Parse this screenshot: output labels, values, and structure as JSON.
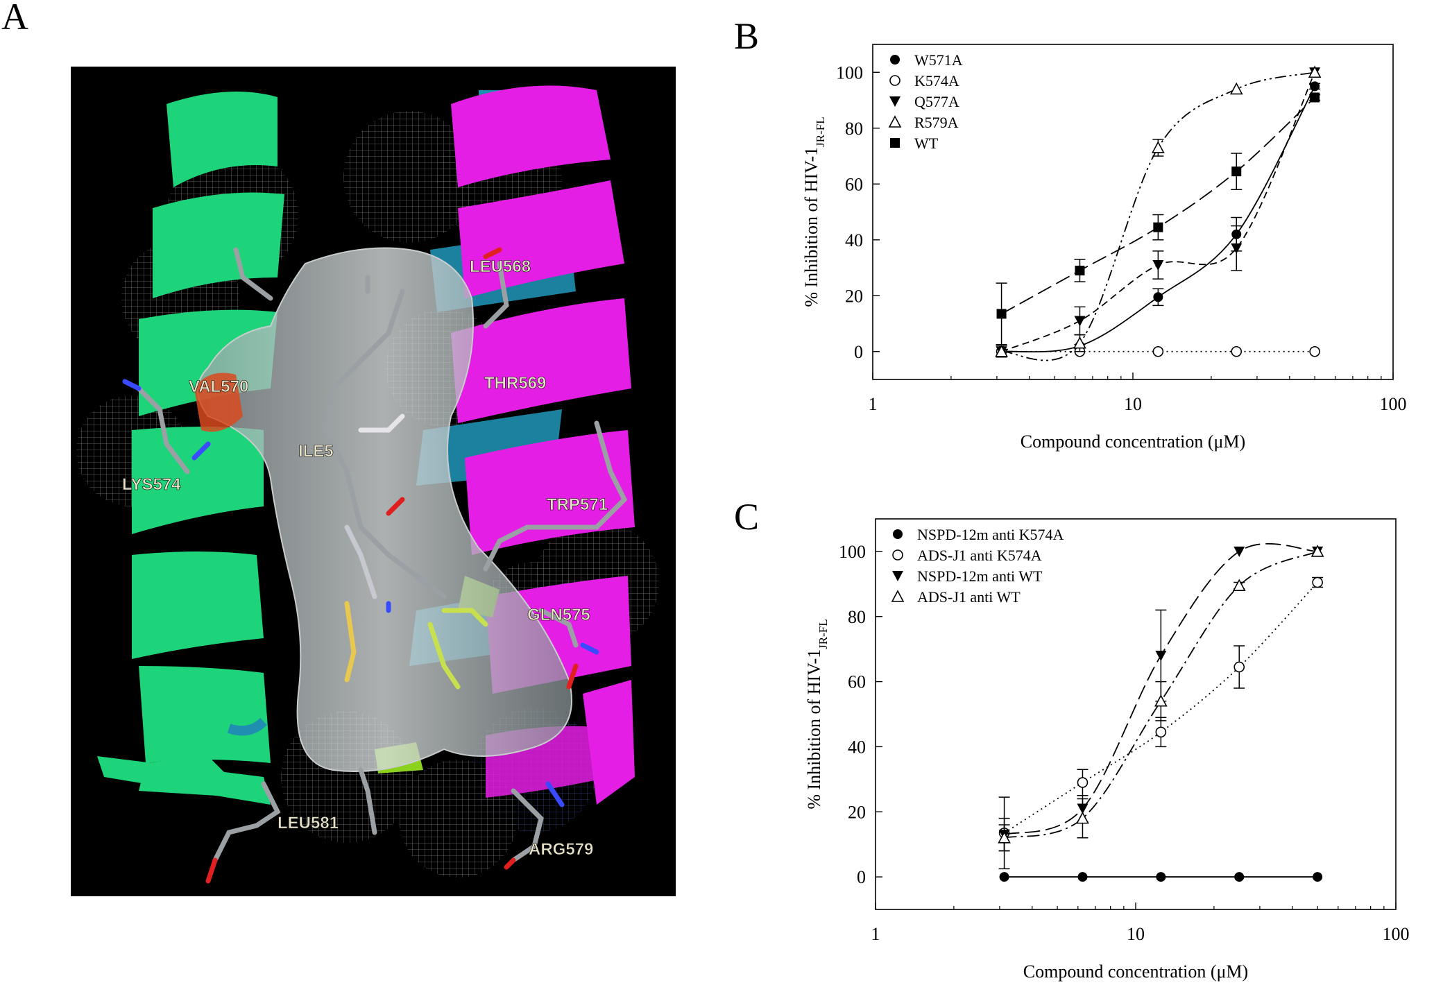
{
  "panels": {
    "a": {
      "letter": "A"
    },
    "b": {
      "letter": "B"
    },
    "c": {
      "letter": "C"
    }
  },
  "molecule": {
    "residues": [
      "LEU568",
      "VAL570",
      "THR569",
      "ILE5",
      "LYS574",
      "TRP571",
      "GLN575",
      "LEU581",
      "ARG579"
    ]
  },
  "chart_data": [
    {
      "type": "line",
      "panel": "B",
      "xlabel": "Compound concentration (μM)",
      "ylabel_prefix": "% Inhibition of HIV-1",
      "ylabel_sub": "JR-FL",
      "xscale": "log",
      "xlim": [
        1,
        100
      ],
      "ylim": [
        -10,
        110
      ],
      "xticks": [
        1,
        10,
        100
      ],
      "xtick_labels": [
        "1",
        "10",
        "100"
      ],
      "yticks": [
        0,
        20,
        40,
        60,
        80,
        100
      ],
      "ytick_labels": [
        "0",
        "20",
        "40",
        "60",
        "80",
        "100"
      ],
      "legend_position": "top-left",
      "series": [
        {
          "name": "W571A",
          "marker": "filled-circle",
          "dash": "solid",
          "x": [
            3.125,
            6.25,
            12.5,
            25,
            50
          ],
          "y": [
            0,
            2,
            19.5,
            42,
            95
          ],
          "err": [
            2,
            0.5,
            3,
            6,
            1
          ]
        },
        {
          "name": "K574A",
          "marker": "open-circle",
          "dash": "dotted",
          "x": [
            3.125,
            6.25,
            12.5,
            25,
            50
          ],
          "y": [
            0,
            0,
            0,
            0,
            0
          ],
          "err": [
            0,
            0,
            0,
            0,
            0
          ]
        },
        {
          "name": "Q577A",
          "marker": "filled-triangle-down",
          "dash": "dashed",
          "x": [
            3.125,
            6.25,
            12.5,
            25,
            50
          ],
          "y": [
            0,
            11,
            31,
            37,
            100
          ],
          "err": [
            0,
            5,
            5,
            8,
            0
          ]
        },
        {
          "name": "R579A",
          "marker": "open-triangle-up",
          "dash": "dash-dot-dot",
          "x": [
            3.125,
            6.25,
            12.5,
            25,
            50
          ],
          "y": [
            0,
            3,
            73,
            94,
            100
          ],
          "err": [
            0,
            3,
            3,
            0,
            0
          ]
        },
        {
          "name": "WT",
          "marker": "filled-square",
          "dash": "long-dash",
          "x": [
            3.125,
            6.25,
            12.5,
            25,
            50
          ],
          "y": [
            13.5,
            29,
            44.5,
            64.5,
            91
          ],
          "err": [
            11,
            4,
            4.5,
            6.5,
            1
          ]
        }
      ]
    },
    {
      "type": "line",
      "panel": "C",
      "xlabel": "Compound concentration (μM)",
      "ylabel_prefix": "% Inhibition of HIV-1",
      "ylabel_sub": "JR-FL",
      "xscale": "log",
      "xlim": [
        1,
        100
      ],
      "ylim": [
        -10,
        110
      ],
      "xticks": [
        1,
        10,
        100
      ],
      "xtick_labels": [
        "1",
        "10",
        "100"
      ],
      "yticks": [
        0,
        20,
        40,
        60,
        80,
        100
      ],
      "ytick_labels": [
        "0",
        "20",
        "40",
        "60",
        "80",
        "100"
      ],
      "legend_position": "top-left",
      "series": [
        {
          "name": "NSPD-12m anti K574A",
          "marker": "filled-circle",
          "dash": "solid",
          "x": [
            3.125,
            6.25,
            12.5,
            25,
            50
          ],
          "y": [
            0,
            0,
            0,
            0,
            0
          ],
          "err": [
            0,
            0,
            0,
            0,
            0
          ]
        },
        {
          "name": "ADS-J1 anti K574A",
          "marker": "open-circle",
          "dash": "dotted",
          "x": [
            3.125,
            6.25,
            12.5,
            25,
            50
          ],
          "y": [
            13.5,
            29,
            44.5,
            64.5,
            90.5
          ],
          "err": [
            11,
            4,
            4.5,
            6.5,
            1.5
          ]
        },
        {
          "name": "NSPD-12m anti WT",
          "marker": "filled-triangle-down",
          "dash": "long-dash",
          "x": [
            3.125,
            6.25,
            12.5,
            25,
            50
          ],
          "y": [
            13,
            21,
            68,
            100,
            100
          ],
          "err": [
            5,
            4,
            14,
            0,
            0
          ]
        },
        {
          "name": "ADS-J1 anti WT",
          "marker": "open-triangle-up",
          "dash": "dash-dot",
          "x": [
            3.125,
            6.25,
            12.5,
            25,
            50
          ],
          "y": [
            12,
            18,
            54,
            89.5,
            100
          ],
          "err": [
            4,
            6,
            6,
            1,
            0
          ]
        }
      ]
    }
  ]
}
